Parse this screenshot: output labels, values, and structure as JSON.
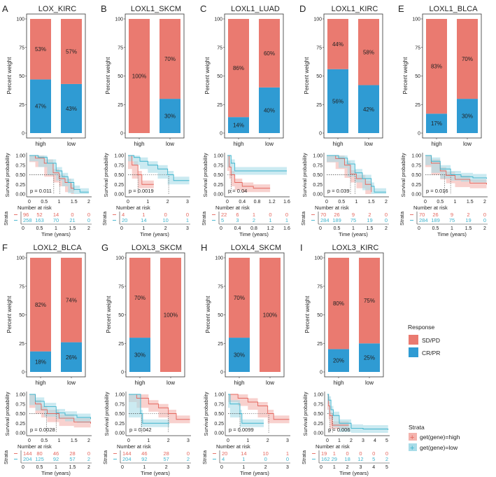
{
  "colors": {
    "sd_pd": "#EA7A70",
    "cr_pr": "#2F9BD3",
    "km_high": "#E4675E",
    "km_low": "#3DB3CC",
    "ci_high": "#F4B3AD",
    "ci_low": "#A8DCE8"
  },
  "labels": {
    "bar_ylabel": "Percent weight",
    "km_ylabel": "Survival probability",
    "risk_title": "Number at risk",
    "risk_ylabel": "Strata",
    "risk_xlabel": "Time (years)",
    "bar_categories": [
      "high",
      "low"
    ],
    "bar_yticks": [
      "0",
      "25",
      "50",
      "75",
      "100"
    ],
    "km_yticks": [
      "0.00",
      "0.25",
      "0.50",
      "0.75",
      "1.00"
    ]
  },
  "legend": {
    "response_title": "Response",
    "response_items": [
      "SD/PD",
      "CR/PR"
    ],
    "strata_title": "Strata",
    "strata_items": [
      "get(gene)=high",
      "get(gene)=low"
    ]
  },
  "chart_data": [
    {
      "letter": "A",
      "title": "LOX_KIRC",
      "type": "bar+km",
      "bars": {
        "high": {
          "sd_pd": 53,
          "cr_pr": 47
        },
        "low": {
          "sd_pd": 57,
          "cr_pr": 43
        }
      },
      "km": {
        "xmax": 2,
        "xticks": [
          "0",
          "0.5",
          "1",
          "1.5",
          "2"
        ],
        "p": "p = 0.011",
        "median": [
          0.82,
          1.02
        ],
        "high": [
          [
            0,
            1
          ],
          [
            0.2,
            0.93
          ],
          [
            0.5,
            0.8
          ],
          [
            0.8,
            0.55
          ],
          [
            1.0,
            0.4
          ],
          [
            1.2,
            0.3
          ],
          [
            1.4,
            0.15
          ],
          [
            1.5,
            0.1
          ]
        ],
        "low": [
          [
            0,
            1
          ],
          [
            0.3,
            0.95
          ],
          [
            0.6,
            0.8
          ],
          [
            0.9,
            0.6
          ],
          [
            1.1,
            0.45
          ],
          [
            1.3,
            0.3
          ],
          [
            1.5,
            0.12
          ],
          [
            1.7,
            0.05
          ],
          [
            2,
            0.05
          ]
        ]
      },
      "risk": {
        "high": [
          "96",
          "52",
          "14",
          "0",
          "0"
        ],
        "low": [
          "258",
          "163",
          "70",
          "21",
          "0"
        ]
      }
    },
    {
      "letter": "B",
      "title": "LOXL1_SKCM",
      "type": "bar+km",
      "bars": {
        "high": {
          "sd_pd": 100,
          "cr_pr": 0
        },
        "low": {
          "sd_pd": 70,
          "cr_pr": 30
        }
      },
      "km": {
        "xmax": 3,
        "xticks": [
          "0",
          "1",
          "2",
          "3"
        ],
        "p": "p = 0.0019",
        "median": [
          0.5,
          2.05
        ],
        "high": [
          [
            0,
            1
          ],
          [
            0.2,
            0.75
          ],
          [
            0.5,
            0.5
          ],
          [
            0.7,
            0.25
          ],
          [
            1.3,
            0.25
          ]
        ],
        "low": [
          [
            0,
            1
          ],
          [
            0.3,
            0.95
          ],
          [
            0.6,
            0.85
          ],
          [
            1,
            0.75
          ],
          [
            1.5,
            0.65
          ],
          [
            2,
            0.5
          ],
          [
            2.3,
            0.35
          ],
          [
            3.1,
            0.35
          ]
        ]
      },
      "risk": {
        "high": [
          "4",
          "1",
          "0",
          "0"
        ],
        "low": [
          "20",
          "14",
          "10",
          "1"
        ]
      }
    },
    {
      "letter": "C",
      "title": "LOXL1_LUAD",
      "type": "bar+km",
      "bars": {
        "high": {
          "sd_pd": 86,
          "cr_pr": 14
        },
        "low": {
          "sd_pd": 60,
          "cr_pr": 40
        }
      },
      "km": {
        "xmax": 1.6,
        "xticks": [
          "0",
          "0.4",
          "0.8",
          "1.2",
          "1.6"
        ],
        "p": "p = 0.04",
        "median": [
          0.1,
          null
        ],
        "high": [
          [
            0,
            1
          ],
          [
            0.05,
            0.7
          ],
          [
            0.1,
            0.5
          ],
          [
            0.2,
            0.3
          ],
          [
            0.4,
            0.2
          ],
          [
            0.7,
            0.15
          ],
          [
            1.15,
            0.15
          ]
        ],
        "low": [
          [
            0,
            1
          ],
          [
            0.1,
            0.8
          ],
          [
            0.2,
            0.6
          ],
          [
            1.6,
            0.6
          ]
        ]
      },
      "risk": {
        "high": [
          "22",
          "6",
          "1",
          "0",
          "0"
        ],
        "low": [
          "5",
          "3",
          "2",
          "1",
          "1"
        ]
      }
    },
    {
      "letter": "D",
      "title": "LOXL1_KIRC",
      "type": "bar+km",
      "bars": {
        "high": {
          "sd_pd": 44,
          "cr_pr": 56
        },
        "low": {
          "sd_pd": 58,
          "cr_pr": 42
        }
      },
      "km": {
        "xmax": 2,
        "xticks": [
          "0",
          "0.5",
          "1",
          "1.5",
          "2"
        ],
        "p": "p = 0.039",
        "median": [
          0.8,
          0.95
        ],
        "high": [
          [
            0,
            1
          ],
          [
            0.3,
            0.92
          ],
          [
            0.6,
            0.75
          ],
          [
            0.8,
            0.52
          ],
          [
            1,
            0.4
          ],
          [
            1.3,
            0.25
          ],
          [
            1.5,
            0.05
          ]
        ],
        "low": [
          [
            0,
            1
          ],
          [
            0.4,
            0.93
          ],
          [
            0.7,
            0.78
          ],
          [
            0.95,
            0.55
          ],
          [
            1.2,
            0.4
          ],
          [
            1.5,
            0.2
          ],
          [
            1.6,
            0.05
          ],
          [
            2,
            0.05
          ]
        ]
      },
      "risk": {
        "high": [
          "70",
          "26",
          "9",
          "2",
          "0"
        ],
        "low": [
          "284",
          "189",
          "75",
          "19",
          "0"
        ]
      }
    },
    {
      "letter": "E",
      "title": "LOXL1_BLCA",
      "type": "bar+km",
      "bars": {
        "high": {
          "sd_pd": 83,
          "cr_pr": 17
        },
        "low": {
          "sd_pd": 70,
          "cr_pr": 30
        }
      },
      "km": {
        "xmax": 2,
        "xticks": [
          "0",
          "0.5",
          "1",
          "1.5",
          "2"
        ],
        "p": "p = 0.016",
        "median": [
          0.65,
          0.85
        ],
        "high": [
          [
            0,
            1
          ],
          [
            0.2,
            0.8
          ],
          [
            0.5,
            0.6
          ],
          [
            0.7,
            0.48
          ],
          [
            1,
            0.38
          ],
          [
            1.5,
            0.28
          ],
          [
            2.1,
            0.25
          ]
        ],
        "low": [
          [
            0,
            1
          ],
          [
            0.2,
            0.85
          ],
          [
            0.5,
            0.65
          ],
          [
            0.85,
            0.5
          ],
          [
            1.2,
            0.45
          ],
          [
            1.6,
            0.42
          ],
          [
            2.1,
            0.4
          ]
        ]
      },
      "risk": {
        "high": [
          "70",
          "26",
          "9",
          "2",
          "0"
        ],
        "low": [
          "284",
          "189",
          "75",
          "19",
          "0"
        ]
      }
    },
    {
      "letter": "F",
      "title": "LOXL2_BLCA",
      "type": "bar+km",
      "bars": {
        "high": {
          "sd_pd": 82,
          "cr_pr": 18
        },
        "low": {
          "sd_pd": 74,
          "cr_pr": 26
        }
      },
      "km": {
        "xmax": 2,
        "xticks": [
          "0",
          "0.5",
          "1",
          "1.5",
          "2"
        ],
        "p": "p = 0.0028",
        "median": [
          0.58,
          0.9
        ],
        "high": [
          [
            0,
            1
          ],
          [
            0.2,
            0.75
          ],
          [
            0.4,
            0.6
          ],
          [
            0.6,
            0.5
          ],
          [
            1,
            0.38
          ],
          [
            1.5,
            0.28
          ],
          [
            2.1,
            0.24
          ]
        ],
        "low": [
          [
            0,
            1
          ],
          [
            0.2,
            0.82
          ],
          [
            0.5,
            0.68
          ],
          [
            0.9,
            0.52
          ],
          [
            1.2,
            0.46
          ],
          [
            1.6,
            0.4
          ],
          [
            2.1,
            0.36
          ]
        ]
      },
      "risk": {
        "high": [
          "144",
          "80",
          "46",
          "28",
          "0"
        ],
        "low": [
          "204",
          "125",
          "92",
          "57",
          "2"
        ]
      }
    },
    {
      "letter": "G",
      "title": "LOXL3_SKCM",
      "type": "bar+km",
      "bars": {
        "high": {
          "sd_pd": 70,
          "cr_pr": 30
        },
        "low": {
          "sd_pd": 100,
          "cr_pr": 0
        }
      },
      "km": {
        "xmax": 3,
        "xticks": [
          "0",
          "1",
          "2",
          "3"
        ],
        "p": "p = 0.042",
        "median": [
          2.0,
          0.65
        ],
        "high": [
          [
            0,
            1
          ],
          [
            0.4,
            0.9
          ],
          [
            1,
            0.75
          ],
          [
            1.5,
            0.65
          ],
          [
            2,
            0.5
          ],
          [
            2.4,
            0.35
          ],
          [
            3.1,
            0.35
          ]
        ],
        "low": [
          [
            0,
            1
          ],
          [
            0.6,
            0.5
          ],
          [
            0.7,
            0.25
          ],
          [
            2.05,
            0.25
          ]
        ]
      },
      "risk": {
        "high": [
          "144",
          "46",
          "28",
          "0"
        ],
        "low": [
          "204",
          "92",
          "57",
          "2"
        ]
      }
    },
    {
      "letter": "H",
      "title": "LOXL4_SKCM",
      "type": "bar+km",
      "bars": {
        "high": {
          "sd_pd": 70,
          "cr_pr": 30
        },
        "low": {
          "sd_pd": 100,
          "cr_pr": 0
        }
      },
      "km": {
        "xmax": 3,
        "xticks": [
          "0",
          "1",
          "2",
          "3"
        ],
        "p": "p = 0.0099",
        "median": [
          2.05,
          0.6
        ],
        "high": [
          [
            0,
            1
          ],
          [
            0.5,
            0.9
          ],
          [
            1,
            0.8
          ],
          [
            1.5,
            0.7
          ],
          [
            2,
            0.5
          ],
          [
            2.3,
            0.35
          ],
          [
            3.1,
            0.35
          ]
        ],
        "low": [
          [
            0,
            1
          ],
          [
            0.1,
            0.75
          ],
          [
            0.6,
            0.5
          ],
          [
            0.7,
            0.25
          ],
          [
            1.8,
            0.25
          ]
        ]
      },
      "risk": {
        "high": [
          "20",
          "14",
          "10",
          "1"
        ],
        "low": [
          "4",
          "1",
          "0",
          "0"
        ]
      }
    },
    {
      "letter": "I",
      "title": "LOXL3_KIRC",
      "type": "bar+km",
      "bars": {
        "high": {
          "sd_pd": 80,
          "cr_pr": 20
        },
        "low": {
          "sd_pd": 75,
          "cr_pr": 25
        }
      },
      "km": {
        "xmax": 5,
        "xticks": [
          "0",
          "1",
          "2",
          "3",
          "4",
          "5"
        ],
        "p": "p = 0.006",
        "median": [
          0.2,
          0.45
        ],
        "high": [
          [
            0,
            1
          ],
          [
            0.1,
            0.7
          ],
          [
            0.2,
            0.45
          ],
          [
            0.4,
            0.2
          ],
          [
            1.8,
            0.2
          ]
        ],
        "low": [
          [
            0,
            1
          ],
          [
            0.1,
            0.85
          ],
          [
            0.3,
            0.6
          ],
          [
            0.5,
            0.45
          ],
          [
            1,
            0.25
          ],
          [
            2,
            0.12
          ],
          [
            3,
            0.1
          ],
          [
            5.1,
            0.08
          ]
        ]
      },
      "risk": {
        "high": [
          "19",
          "1",
          "0",
          "0",
          "0",
          "0"
        ],
        "low": [
          "162",
          "29",
          "18",
          "12",
          "5",
          "2"
        ]
      }
    }
  ]
}
